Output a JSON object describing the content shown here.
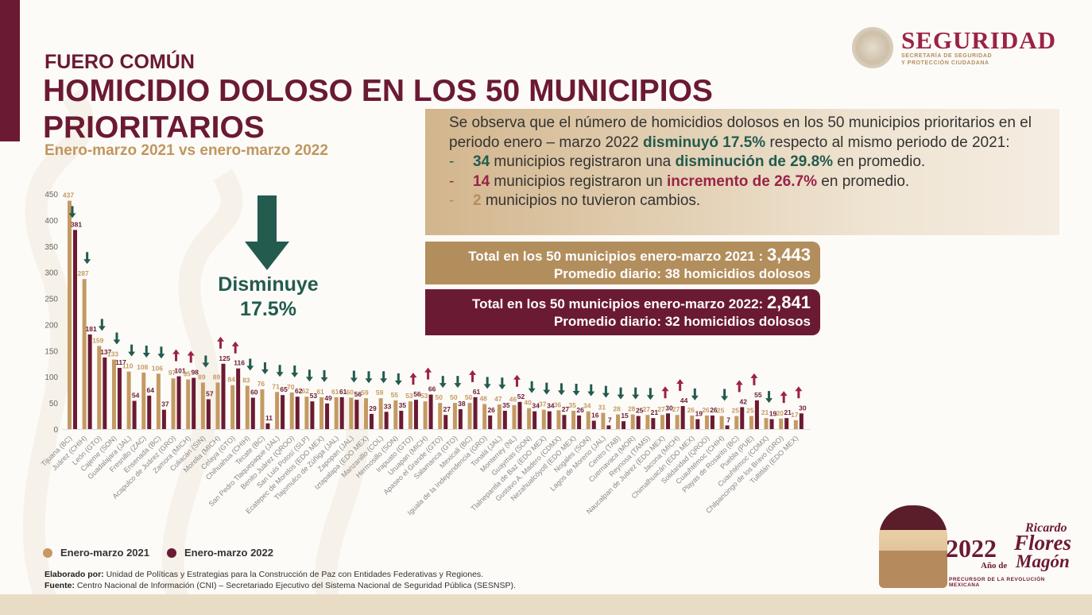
{
  "header": {
    "kicker": "FUERO COMÚN",
    "title": "HOMICIDIO DOLOSO EN LOS 50 MUNICIPIOS PRIORITARIOS",
    "subtitle": "Enero-marzo 2021 vs enero-marzo 2022",
    "logo_main": "SEGURIDAD",
    "logo_sub1": "SECRETARÍA DE SEGURIDAD",
    "logo_sub2": "Y PROTECCIÓN CIUDADANA"
  },
  "summary": {
    "p1": "Se observa que el número de homicidios dolosos en los 50 municipios prioritarios en el periodo enero – marzo 2022 ",
    "p1_bold": "disminuyó 17.5%",
    "p1_end": " respecto al mismo periodo de 2021:",
    "b1_dash": "-",
    "b1_num": "34",
    "b1_text": " municipios registraron una ",
    "b1_bold": "disminución de 29.8%",
    "b1_end": " en promedio.",
    "b2_dash": "-",
    "b2_num": "14",
    "b2_text": " municipios registraron un ",
    "b2_bold": "incremento de 26.7%",
    "b2_end": " en promedio.",
    "b3_dash": "-",
    "b3_num": "2",
    "b3_text": " municipios no tuvieron cambios."
  },
  "totals": {
    "t2021_label": "Total en los 50 municipios enero-marzo 2021 : ",
    "t2021_value": "3,443",
    "t2021_daily": "Promedio diario: 38 homicidios dolosos",
    "t2022_label": "Total en los 50 municipios enero-marzo 2022: ",
    "t2022_value": "2,841",
    "t2022_daily": "Promedio diario: 32 homicidios dolosos"
  },
  "callout": {
    "line1": "Disminuye",
    "line2": "17.5%"
  },
  "legend": {
    "s2021": "Enero-marzo 2021",
    "s2022": "Enero-marzo 2022"
  },
  "credits": {
    "elab_label": "Elaborado por:",
    "elab_text": " Unidad de Políticas y Estrategias para la Construcción de Paz con Entidades Federativas y Regiones.",
    "src_label": "Fuente:",
    "src_text": " Centro Nacional de Información (CNI) – Secretariado Ejecutivo del Sistema Nacional de Seguridad Pública (SESNSP)."
  },
  "footer_logo": {
    "year": "2022",
    "ano_de": "Año de",
    "name1": "Ricardo",
    "name2": "Flores",
    "name3": "Magón",
    "tagline": "PRECURSOR DE LA REVOLUCIÓN MEXICANA"
  },
  "colors": {
    "c2021": "#c49a62",
    "c2022": "#6b1a33",
    "down": "#235b4e",
    "up": "#9b2247"
  },
  "chart_data": {
    "type": "bar",
    "title": "Homicidio doloso en los 50 municipios prioritarios",
    "ylim": [
      0,
      450
    ],
    "yticks": [
      0,
      50,
      100,
      150,
      200,
      250,
      300,
      350,
      400,
      450
    ],
    "legend_position": "bottom-left",
    "categories": [
      "Tijuana (BC)",
      "Juárez (CHIH)",
      "León (GTO)",
      "Cajeme (SON)",
      "Guadalajara (JAL)",
      "Fresnillo (ZAC)",
      "Ensenada (BC)",
      "Acapulco de Juárez (GRO)",
      "Zamora (MICH)",
      "Culiacán (SIN)",
      "Morelia (MICH)",
      "Celaya (GTO)",
      "Chihuahua (CHIH)",
      "Tecate (BC)",
      "San Pedro Tlaquepaque (JAL)",
      "Benito Juárez (QROO)",
      "San Luis Potosí (SLP)",
      "Ecatepec de Morelos (EDO MEX)",
      "Tlajomulco de Zúñiga (JAL)",
      "Zapopan (JAL)",
      "Iztapalapa (EDO MEX)",
      "Manzanillo (COL)",
      "Hermosillo (SON)",
      "Irapuato (GTO)",
      "Uruapan (MICH)",
      "Apaseo el Grande (GTO)",
      "Salamanca (GTO)",
      "Mexicali (BC)",
      "Iguala de la Independencia (GRO)",
      "Tonalá (JAL)",
      "Monterrey (NL)",
      "Guaymas (SON)",
      "Tlalnepantla de Baz (EDO MEX)",
      "Gustavo A. Madero (CDMX)",
      "Nezahualcóyotl (EDO MEX)",
      "Nogales (SON)",
      "Lagos de Moreno (JAL)",
      "Centro (TAB)",
      "Cuernavaca (MOR)",
      "Reynosa (TAMS)",
      "Naucalpan de Juárez (EDO MEX)",
      "Jacona (MICH)",
      "Chimalhuacán (EDO MEX)",
      "Solidaridad (QROO)",
      "Cuauhtémoc (CHIH)",
      "Playas de Rosarito (BC)",
      "Puebla (PUE)",
      "Cuauhtémoc (CDMX)",
      "Chilpancingo de los Bravo (GRO)",
      "Tultitlán (EDO MEX)"
    ],
    "series": [
      {
        "name": "Enero-marzo 2021",
        "values": [
          437,
          287,
          159,
          133,
          110,
          108,
          106,
          97,
          95,
          89,
          89,
          84,
          83,
          76,
          71,
          70,
          62,
          61,
          61,
          60,
          59,
          59,
          55,
          53,
          53,
          50,
          50,
          50,
          48,
          47,
          46,
          40,
          37,
          36,
          35,
          34,
          31,
          28,
          28,
          27,
          27,
          27,
          26,
          26,
          25,
          25,
          25,
          21,
          20,
          17
        ]
      },
      {
        "name": "Enero-marzo 2022",
        "values": [
          381,
          181,
          137,
          117,
          54,
          64,
          37,
          101,
          98,
          57,
          125,
          116,
          60,
          11,
          65,
          62,
          53,
          49,
          61,
          56,
          29,
          33,
          35,
          56,
          66,
          27,
          38,
          61,
          26,
          35,
          52,
          34,
          34,
          27,
          26,
          16,
          7,
          15,
          25,
          21,
          30,
          44,
          19,
          26,
          7,
          42,
          55,
          19,
          21,
          30
        ]
      }
    ]
  }
}
